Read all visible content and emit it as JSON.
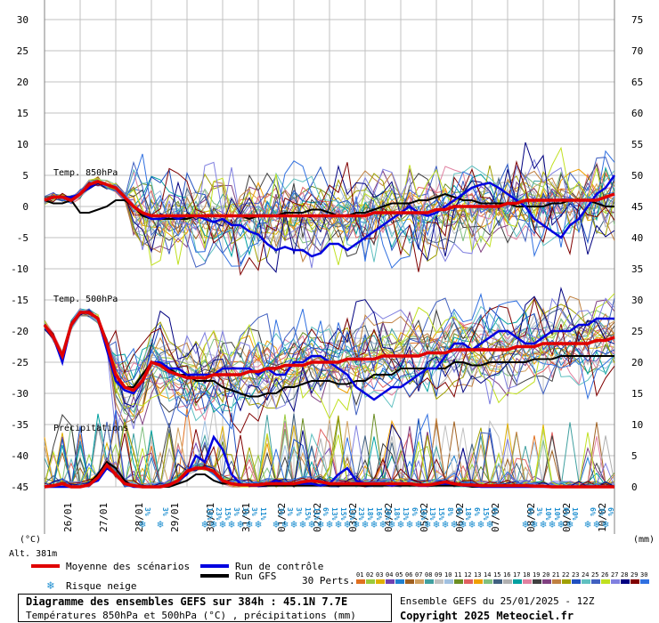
{
  "chart_data": {
    "type": "line",
    "title": "Diagramme des ensembles GEFS sur 384h : 45.1N 7.7E",
    "subtitle": "Températures 850hPa et 500hPa (°C) , précipitations (mm)",
    "left_axis": {
      "unit_label": "(°C)",
      "ticks": [
        30,
        25,
        20,
        15,
        10,
        5,
        0,
        -5,
        -10,
        -15,
        -20,
        -25,
        -30,
        -35,
        -40,
        -45
      ],
      "range": [
        -45,
        30
      ]
    },
    "right_axis": {
      "unit_label": "(mm)",
      "ticks": [
        75,
        70,
        65,
        60,
        55,
        50,
        45,
        40,
        35,
        30,
        25,
        20,
        15,
        10,
        5,
        0
      ],
      "range": [
        0,
        75
      ]
    },
    "x_labels": [
      "26/01",
      "27/01",
      "28/01",
      "29/01",
      "30/01",
      "31/01",
      "01/02",
      "02/02",
      "03/02",
      "04/02",
      "05/02",
      "06/02",
      "07/02",
      "08/02",
      "09/02",
      "10/02"
    ],
    "altitude_label": "Alt. 381m",
    "panel_labels": [
      "Temp. 850hPa",
      "Temp. 500hPa",
      "Précipitations"
    ],
    "snow_risk": [
      "3%",
      "3%",
      "18%",
      "23%",
      "15%",
      "3%",
      "3%",
      "3%",
      "11%",
      "3%",
      "3%",
      "3%",
      "15%",
      "11%",
      "6%",
      "13%",
      "15%",
      "13%",
      "23%",
      "18%",
      "16%",
      "20%",
      "18%",
      "13%",
      "6%",
      "16%",
      "13%",
      "15%",
      "8%",
      "6%",
      "18%",
      "6%",
      "15%",
      "6%",
      "6%",
      "3%",
      "10%",
      "10%",
      "6%",
      "10%",
      "6%",
      "3%",
      "6%",
      "10%"
    ],
    "series": [
      {
        "name": "Moyenne des scénarios",
        "t850": [
          1,
          1.5,
          1.5,
          1,
          2,
          3.5,
          4,
          3.5,
          3,
          1.5,
          0,
          -1,
          -1.5,
          -1.5,
          -1.5,
          -1.5,
          -1.5,
          -1.5,
          -1.5,
          -1.5,
          -1.5,
          -1.5,
          -1.5,
          -1.5,
          -1.5,
          -1.5,
          -1.5,
          -1.5,
          -1.5,
          -1.5,
          -1.5,
          -1.5,
          -1.5,
          -1.5,
          -1.5,
          -1.5,
          -1.5,
          -1,
          -1,
          -1,
          -1,
          -1,
          -1,
          -1,
          -0.5,
          -0.5,
          0,
          0,
          0,
          0,
          0,
          0,
          0.5,
          0.5,
          1,
          1,
          1,
          1,
          1,
          1,
          1,
          1,
          1,
          1.5,
          2
        ],
        "t500": [
          -19,
          -21,
          -24,
          -19,
          -17,
          -17,
          -18,
          -22,
          -27,
          -29,
          -29.5,
          -28,
          -25,
          -25.5,
          -26.5,
          -27,
          -27.5,
          -27.5,
          -27.5,
          -27,
          -27,
          -27,
          -27,
          -26.5,
          -26.5,
          -26,
          -26,
          -25.5,
          -25.5,
          -25.5,
          -25,
          -25,
          -25,
          -25,
          -24.5,
          -24.5,
          -24.5,
          -24.5,
          -24,
          -24,
          -24,
          -24,
          -24,
          -23.5,
          -23.5,
          -23.5,
          -23,
          -23,
          -23,
          -23,
          -23,
          -23,
          -23,
          -22.5,
          -22.5,
          -22.5,
          -22,
          -22,
          -22,
          -22,
          -22,
          -22,
          -21.5,
          -21.5,
          -21
        ],
        "precip": [
          0,
          0.2,
          0.5,
          0,
          0,
          0.3,
          1.5,
          3.5,
          2,
          0.5,
          0.2,
          0,
          0,
          0,
          0.3,
          1,
          2.5,
          3,
          3,
          2.5,
          1,
          0.5,
          0.3,
          0.3,
          0.3,
          0.5,
          0.5,
          0.5,
          0.5,
          0.8,
          1,
          0.8,
          0.5,
          0.5,
          0.5,
          0.5,
          0.5,
          0.5,
          0.5,
          0.5,
          0.5,
          0.5,
          0.3,
          0.3,
          0.5,
          0.8,
          0.5,
          0.3,
          0.3,
          0.2,
          0.2,
          0.2,
          0.2,
          0.2,
          0.2,
          0.1,
          0.1,
          0,
          0,
          0,
          0,
          0,
          0,
          0,
          0
        ]
      },
      {
        "name": "Run de contrôle",
        "t850": [
          1,
          1.5,
          1.5,
          1.5,
          2,
          3,
          4,
          3.5,
          3,
          1.5,
          0,
          -1,
          -2,
          -2,
          -1.5,
          -2,
          -1.5,
          -1.5,
          -2,
          -2.5,
          -2,
          -3,
          -3,
          -4,
          -4.5,
          -6,
          -7,
          -6.5,
          -7,
          -7,
          -8,
          -7.5,
          -6,
          -6,
          -7,
          -6,
          -5,
          -4,
          -3,
          -2,
          -1,
          0,
          -1,
          -1.5,
          -1,
          0,
          1,
          2,
          3,
          3.5,
          3.8,
          3,
          2,
          1,
          0,
          -2,
          -3,
          -4,
          -5,
          -3,
          -2,
          0,
          2,
          3,
          5
        ],
        "t500": [
          -19,
          -21,
          -25,
          -19,
          -17,
          -17,
          -18,
          -23,
          -28,
          -29.5,
          -30,
          -28,
          -25,
          -25,
          -26,
          -26,
          -27,
          -27,
          -27,
          -27,
          -26,
          -26,
          -26,
          -26,
          -27,
          -26,
          -27,
          -27,
          -25,
          -25,
          -24,
          -24,
          -25,
          -26,
          -27,
          -29,
          -30,
          -31,
          -30,
          -29,
          -29,
          -28,
          -27,
          -26,
          -26,
          -24,
          -22,
          -22,
          -23,
          -22,
          -21,
          -20,
          -20,
          -21,
          -22,
          -22,
          -21,
          -20,
          -20,
          -20,
          -19,
          -19,
          -18,
          -18,
          -18
        ],
        "precip": [
          0,
          0,
          0,
          0,
          0,
          0.5,
          1,
          3,
          2,
          0.5,
          0,
          0,
          0,
          0,
          0.5,
          1,
          2,
          5,
          4,
          8,
          6,
          2,
          0.5,
          0.2,
          0.2,
          0.5,
          1,
          0.5,
          0.5,
          0.5,
          0.5,
          0.2,
          0.5,
          2,
          3,
          1,
          0.5,
          0.5,
          0.5,
          0.2,
          0.5,
          0.5,
          0.2,
          0.2,
          0.5,
          0.5,
          0.5,
          0.2,
          0.2,
          0,
          0,
          0,
          0,
          0,
          0,
          0,
          0,
          0,
          0,
          0,
          0,
          0,
          0,
          0,
          0
        ]
      },
      {
        "name": "Run GFS",
        "t850": [
          1,
          0.5,
          0.5,
          1,
          -1,
          -1,
          -0.5,
          0,
          1,
          1,
          0,
          -1.5,
          -2,
          -2,
          -2,
          -2,
          -2,
          -1.5,
          -1.5,
          -1.5,
          -1.5,
          -1.5,
          -1.5,
          -2,
          -1.5,
          -1.5,
          -1.5,
          -1,
          -1,
          -1,
          -0.5,
          -0.5,
          -1,
          -1.5,
          -1.5,
          -1,
          -1,
          -0.5,
          0,
          0.5,
          0.5,
          0.5,
          1,
          1,
          1.5,
          2,
          1.5,
          1,
          1,
          0.5,
          0.5,
          0.5,
          0.5,
          0,
          0,
          0,
          0,
          0.5,
          0.5,
          1,
          1,
          1,
          0.5,
          0,
          0
        ],
        "t500": [
          -19,
          -21,
          -24,
          -19,
          -17,
          -17,
          -18,
          -22,
          -27,
          -29,
          -29,
          -27,
          -25,
          -25,
          -26,
          -27,
          -27,
          -28,
          -28,
          -28,
          -29,
          -29.5,
          -30,
          -30.5,
          -30.5,
          -30,
          -30,
          -29,
          -29,
          -28.5,
          -28,
          -28,
          -28,
          -28.5,
          -28.5,
          -28,
          -28,
          -27,
          -27,
          -27,
          -26,
          -26,
          -26,
          -26,
          -26,
          -26,
          -25,
          -25,
          -25.5,
          -25.5,
          -25,
          -25,
          -25,
          -25,
          -25,
          -24.5,
          -24.5,
          -24.5,
          -24,
          -24,
          -24,
          -24,
          -24,
          -24,
          -24
        ],
        "precip": [
          0,
          0,
          0,
          0,
          0,
          0.5,
          2,
          4,
          3,
          1,
          0,
          0,
          0,
          0,
          0,
          0.5,
          1,
          2,
          2,
          1,
          0.5,
          0.5,
          0.5,
          0.2,
          0.2,
          0.2,
          0.2,
          0.2,
          0.2,
          0.2,
          0.2,
          0.2,
          0.2,
          0.2,
          0.2,
          0.2,
          0.2,
          0.2,
          0.2,
          0.2,
          0.2,
          0.2,
          0.2,
          0.2,
          0.2,
          0.2,
          0.2,
          0.2,
          0,
          0,
          0,
          0,
          0,
          0,
          0,
          0,
          0,
          0,
          0,
          0,
          0,
          0,
          0,
          0,
          0
        ]
      }
    ],
    "perturbations_label": "30 Perts.",
    "perturbation_ids": [
      "01",
      "02",
      "03",
      "04",
      "05",
      "06",
      "07",
      "08",
      "09",
      "10",
      "11",
      "12",
      "13",
      "14",
      "15",
      "16",
      "17",
      "18",
      "19",
      "20",
      "21",
      "22",
      "23",
      "24",
      "25",
      "26",
      "27",
      "28",
      "29",
      "30"
    ],
    "perturbation_colors": [
      "#e07020",
      "#9aca3c",
      "#e0b000",
      "#7040b0",
      "#2080d0",
      "#a06020",
      "#d0a060",
      "#40a0a0",
      "#c0c0c0",
      "#a0c0e0",
      "#6b8e23",
      "#e06060",
      "#f0a000",
      "#80c080",
      "#406080",
      "#b0b0b0",
      "#00a0a0",
      "#e080a0",
      "#404040",
      "#804080",
      "#c08040",
      "#a0a000",
      "#2050c0",
      "#60c0c0",
      "#4060c0",
      "#c0e020",
      "#8080e0",
      "#000080",
      "#800000",
      "#3070e0"
    ],
    "legend_mean": "Moyenne des scénarios",
    "legend_control": "Run de contrôle",
    "legend_gfs": "Run GFS",
    "legend_snow": "Risque neige",
    "colors": {
      "mean": "#e00000",
      "control": "#0000e0",
      "gfs": "#000000",
      "grid": "#c0c0c0",
      "snow": "#1e8fd0"
    }
  },
  "footer": {
    "title": "Diagramme des ensembles GEFS sur 384h : 45.1N 7.7E",
    "subtitle": "Températures 850hPa et 500hPa (°C) , précipitations (mm)",
    "run": "Ensemble GEFS du 25/01/2025 - 12Z",
    "copyright": "Copyright 2025 Meteociel.fr"
  }
}
